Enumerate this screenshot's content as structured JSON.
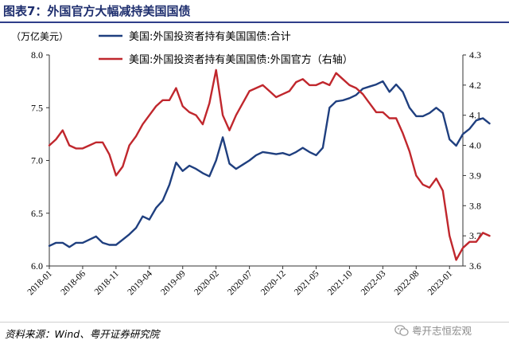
{
  "page": {
    "title": "图表7：外国官方大幅减持美国国债",
    "source": "资料来源：Wind、粤开证券研究院",
    "watermark": "粤开志恒宏观",
    "watermark_icon": "wechat-icon"
  },
  "chart_data": {
    "type": "line",
    "unit_label": "（万亿美元）",
    "grid": false,
    "legend_position": "top-center",
    "x_labels": [
      "2018-01",
      "2018-06",
      "2018-11",
      "2019-04",
      "2019-09",
      "2020-02",
      "2020-07",
      "2020-12",
      "2021-05",
      "2021-10",
      "2022-03",
      "2022-08",
      "2023-01"
    ],
    "x_start": "2018-01",
    "x_end": "2023-03",
    "y_left": {
      "min": 6.0,
      "max": 8.0,
      "ticks": [
        "6.0",
        "6.5",
        "7.0",
        "7.5",
        "8.0"
      ]
    },
    "y_right": {
      "min": 3.6,
      "max": 4.3,
      "ticks": [
        "3.6",
        "3.7",
        "3.8",
        "3.9",
        "4.0",
        "4.1",
        "4.2",
        "4.3"
      ]
    },
    "series": [
      {
        "name": "美国:外国投资者持有美国国债:合计",
        "axis": "left",
        "color": "#1f3f7f",
        "values": [
          6.19,
          6.22,
          6.22,
          6.18,
          6.22,
          6.22,
          6.25,
          6.28,
          6.22,
          6.2,
          6.2,
          6.25,
          6.3,
          6.36,
          6.47,
          6.44,
          6.55,
          6.62,
          6.77,
          6.98,
          6.9,
          6.95,
          6.92,
          6.88,
          6.85,
          7.0,
          7.22,
          6.97,
          6.92,
          6.96,
          7.0,
          7.05,
          7.08,
          7.07,
          7.06,
          7.07,
          7.05,
          7.08,
          7.12,
          7.08,
          7.05,
          7.12,
          7.5,
          7.56,
          7.57,
          7.59,
          7.62,
          7.68,
          7.7,
          7.72,
          7.75,
          7.65,
          7.72,
          7.65,
          7.5,
          7.42,
          7.42,
          7.45,
          7.5,
          7.45,
          7.2,
          7.14,
          7.25,
          7.3,
          7.38,
          7.4,
          7.35
        ]
      },
      {
        "name": "美国:外国投资者持有美国国债:外国官方（右轴）",
        "axis": "right",
        "color": "#c0272d",
        "values": [
          4.0,
          4.02,
          4.05,
          4.0,
          3.99,
          3.99,
          4.0,
          4.01,
          4.01,
          3.97,
          3.9,
          3.93,
          4.0,
          4.03,
          4.07,
          4.1,
          4.13,
          4.15,
          4.15,
          4.19,
          4.13,
          4.11,
          4.1,
          4.07,
          4.14,
          4.25,
          4.1,
          4.05,
          4.1,
          4.14,
          4.18,
          4.19,
          4.2,
          4.18,
          4.16,
          4.17,
          4.18,
          4.21,
          4.22,
          4.2,
          4.2,
          4.21,
          4.2,
          4.24,
          4.22,
          4.2,
          4.19,
          4.17,
          4.14,
          4.11,
          4.11,
          4.09,
          4.09,
          4.04,
          3.98,
          3.9,
          3.87,
          3.86,
          3.89,
          3.85,
          3.7,
          3.62,
          3.66,
          3.68,
          3.68,
          3.71,
          3.7
        ]
      }
    ]
  }
}
